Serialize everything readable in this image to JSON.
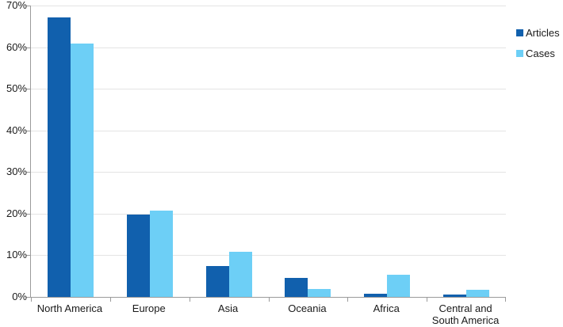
{
  "chart_data": {
    "type": "bar",
    "title": "",
    "xlabel": "",
    "ylabel": "",
    "categories": [
      "North America",
      "Europe",
      "Asia",
      "Oceania",
      "Africa",
      "Central and South America"
    ],
    "series": [
      {
        "name": "Articles",
        "color": "#1160ad",
        "values": [
          67.2,
          19.8,
          7.4,
          4.6,
          0.8,
          0.5
        ]
      },
      {
        "name": "Cases",
        "color": "#6dcff6",
        "values": [
          60.8,
          20.7,
          10.8,
          1.9,
          5.4,
          1.8
        ]
      }
    ],
    "ylim": [
      0,
      70
    ],
    "y_tick_step": 10,
    "y_tick_labels": [
      "0%",
      "10%",
      "20%",
      "30%",
      "40%",
      "50%",
      "60%",
      "70%"
    ],
    "grid": true,
    "legend_position": "top-right"
  },
  "colors": {
    "articles": "#1160ad",
    "cases": "#6dcff6",
    "gridline": "#e4e4e4",
    "axis": "#9b9b9b",
    "text": "#1a1a1a",
    "background": "#ffffff"
  }
}
